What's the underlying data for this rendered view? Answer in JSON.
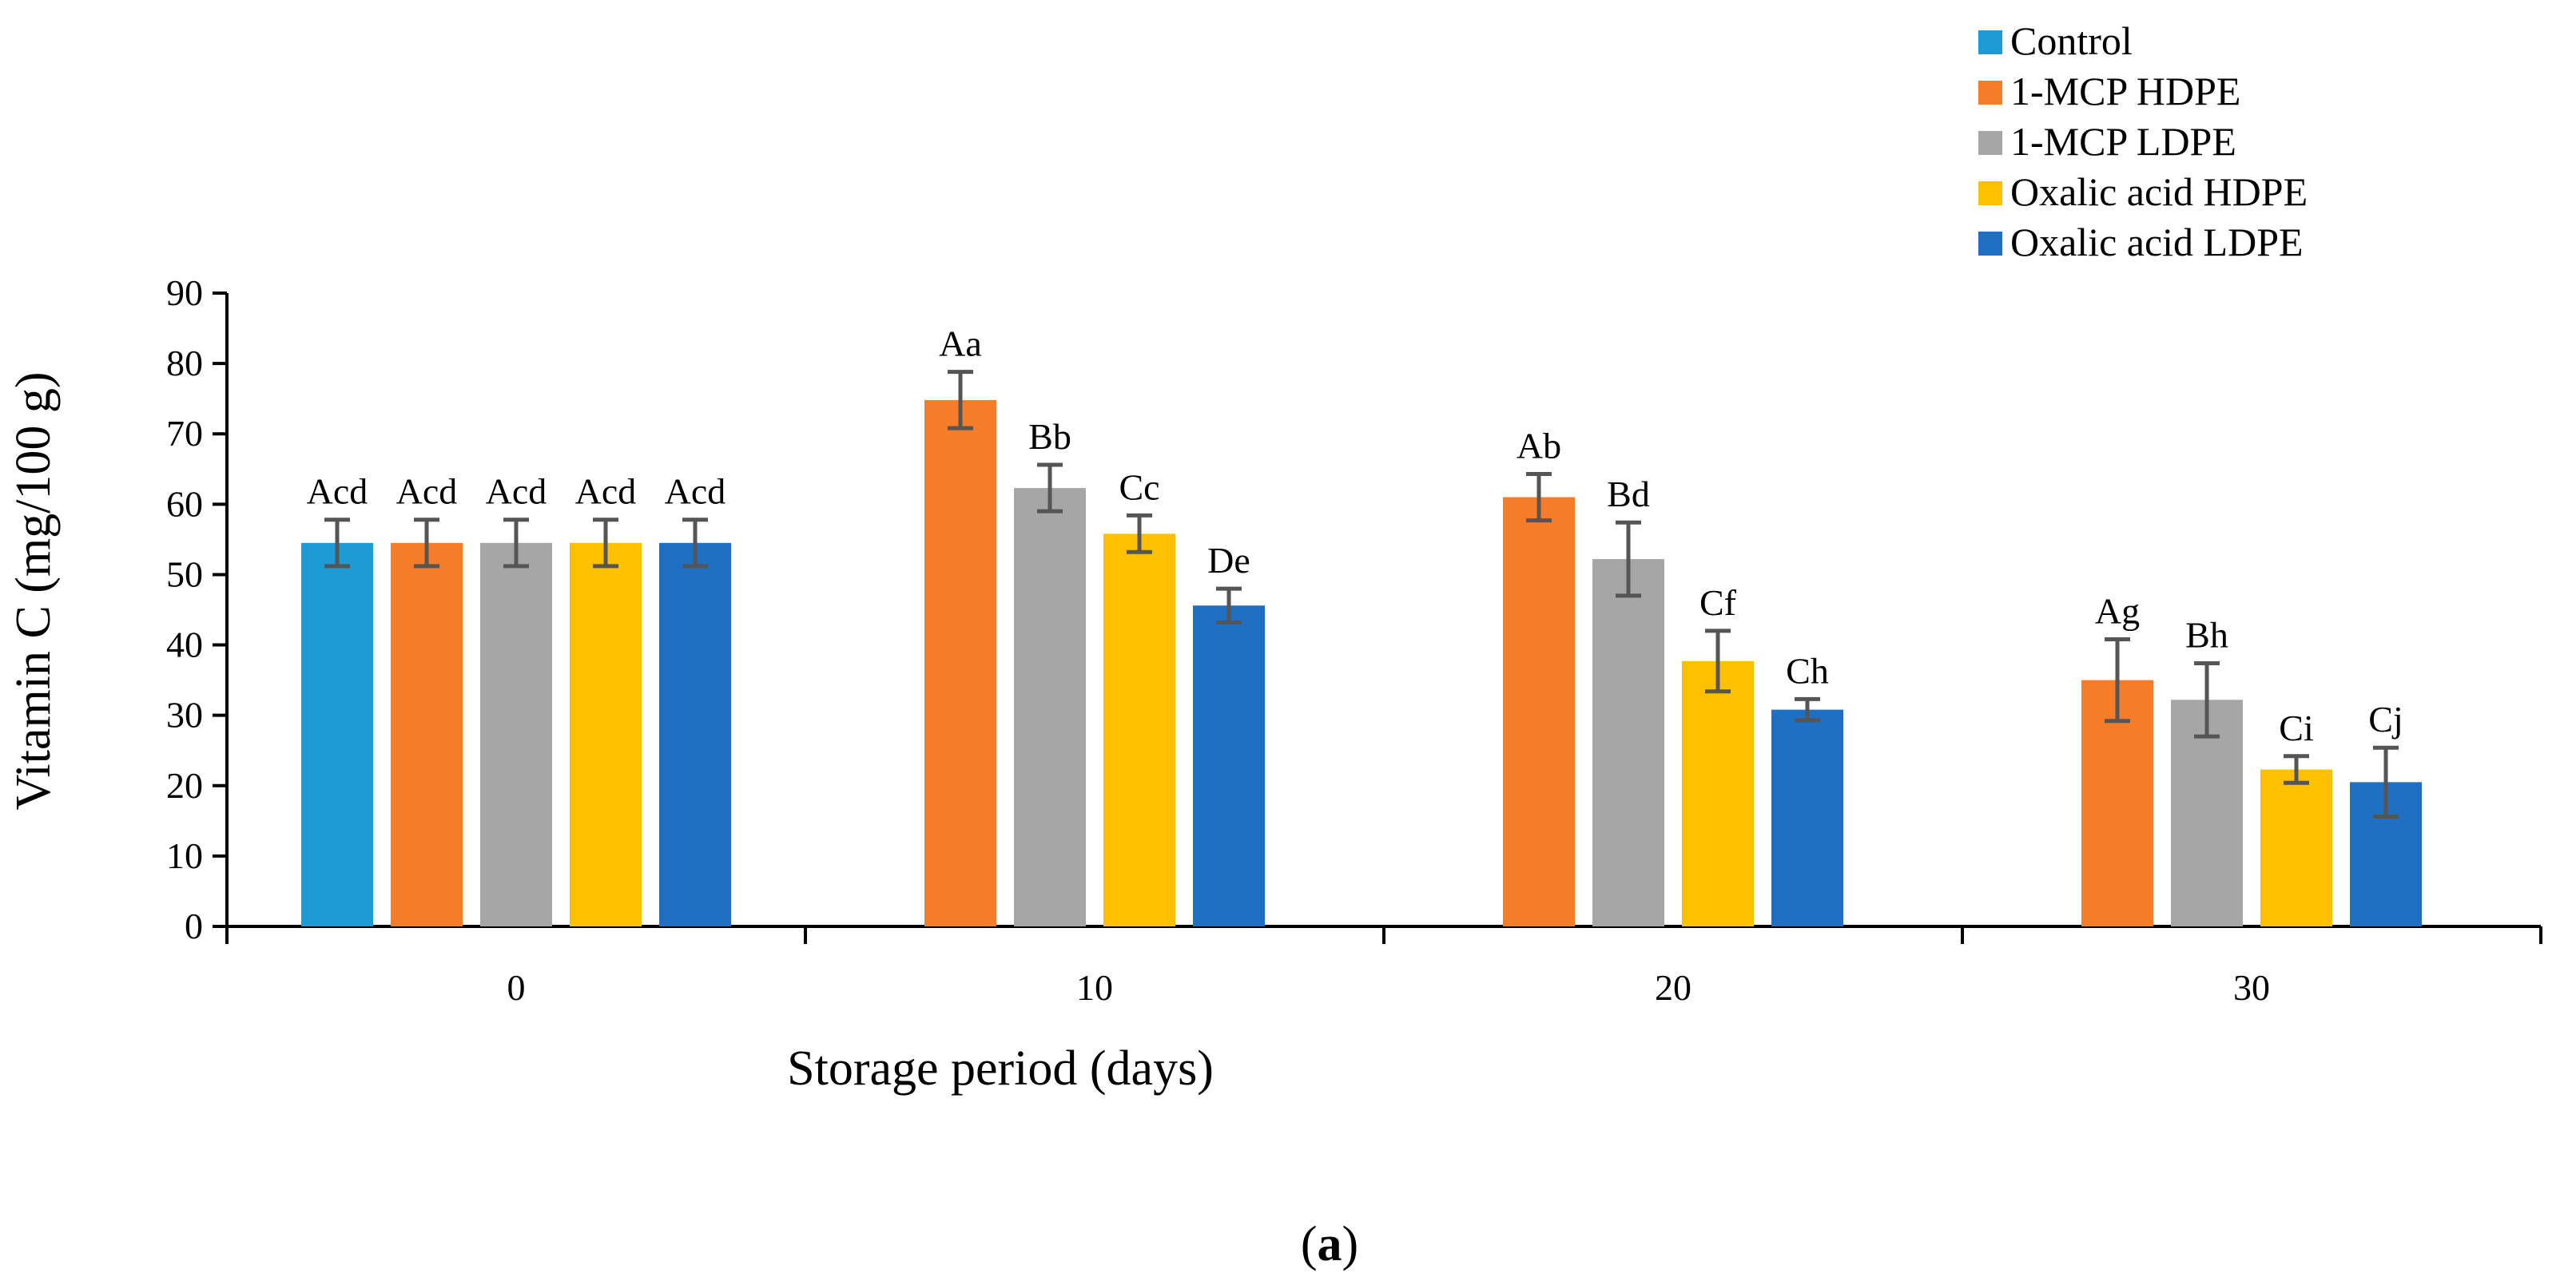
{
  "colors": {
    "Control": "#1E9BD7",
    "1-MCP HDPE": "#F57C29",
    "1-MCP LDPE": "#A6A6A6",
    "Oxalic acid HDPE": "#FFC000",
    "Oxalic acid LDPE": "#1F6FC5",
    "errorbar": "#555555",
    "axis": "#000000"
  },
  "caption": {
    "open": "(",
    "letter": "a",
    "close": ")"
  },
  "chart_data": {
    "type": "bar",
    "title": "",
    "xlabel": "Storage period (days)",
    "ylabel": "Vitamin C (mg/100 g)",
    "ylim": [
      0,
      90
    ],
    "yticks": [
      0,
      10,
      20,
      30,
      40,
      50,
      60,
      70,
      80,
      90
    ],
    "categories": [
      "0",
      "10",
      "20",
      "30"
    ],
    "legend_position": "top-right",
    "series": [
      {
        "name": "Control",
        "values": [
          54.5,
          null,
          null,
          null
        ],
        "errors": [
          3.3,
          null,
          null,
          null
        ],
        "labels": [
          "Acd",
          null,
          null,
          null
        ]
      },
      {
        "name": "1-MCP HDPE",
        "values": [
          54.5,
          74.8,
          61.0,
          35.0
        ],
        "errors": [
          3.3,
          4.0,
          3.3,
          5.8
        ],
        "labels": [
          "Acd",
          "Aa",
          "Ab",
          "Ag"
        ]
      },
      {
        "name": "1-MCP LDPE",
        "values": [
          54.5,
          62.3,
          52.2,
          32.2
        ],
        "errors": [
          3.3,
          3.3,
          5.2,
          5.2
        ],
        "labels": [
          "Acd",
          "Bb",
          "Bd",
          "Bh"
        ]
      },
      {
        "name": "Oxalic acid HDPE",
        "values": [
          54.5,
          55.8,
          37.7,
          22.3
        ],
        "errors": [
          3.3,
          2.6,
          4.3,
          1.9
        ],
        "labels": [
          "Acd",
          "Cc",
          "Cf",
          "Ci"
        ]
      },
      {
        "name": "Oxalic acid LDPE",
        "values": [
          54.5,
          45.6,
          30.8,
          20.5
        ],
        "errors": [
          3.3,
          2.4,
          1.5,
          4.9
        ],
        "labels": [
          "Acd",
          "De",
          "Ch",
          "Cj"
        ]
      }
    ]
  }
}
